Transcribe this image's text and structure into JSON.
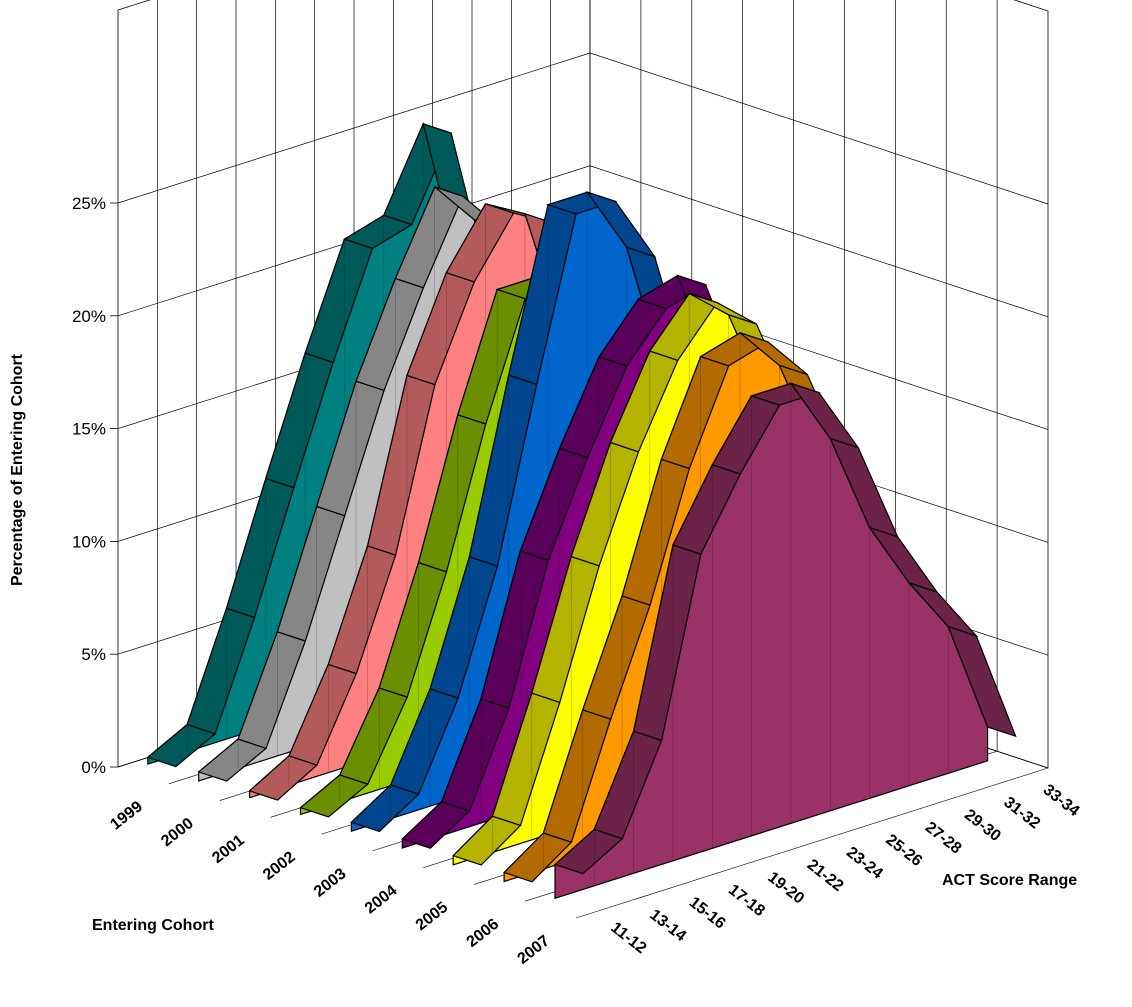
{
  "chart_data": {
    "type": "area",
    "xlabel": "Entering Cohort",
    "zlabel": "ACT Score Range",
    "ylabel": "Percentage of Entering Cohort",
    "yticks": [
      "0%",
      "5%",
      "10%",
      "15%",
      "20%",
      "25%"
    ],
    "ylim": [
      0,
      25
    ],
    "cohorts": [
      "1999",
      "2000",
      "2001",
      "2002",
      "2003",
      "2004",
      "2005",
      "2006",
      "2007"
    ],
    "score_ranges": [
      "11-12",
      "13-14",
      "15-16",
      "17-18",
      "19-20",
      "21-22",
      "23-24",
      "25-26",
      "27-28",
      "29-30",
      "31-32",
      "33-34"
    ],
    "series": [
      {
        "name": "1999",
        "color": "#008080",
        "values": [
          0.3,
          1.2,
          5.8,
          11.0,
          16.0,
          20.5,
          21.0,
          24.5,
          17.0,
          9.5,
          5.0,
          1.5
        ]
      },
      {
        "name": "2000",
        "color": "#C0C0C0",
        "values": [
          0.4,
          1.3,
          5.5,
          10.5,
          15.5,
          19.5,
          23.0,
          21.0,
          15.5,
          9.5,
          5.0,
          1.5
        ]
      },
      {
        "name": "2001",
        "color": "#FF8080",
        "values": [
          0.3,
          1.3,
          4.8,
          9.5,
          16.5,
          20.5,
          23.0,
          22.0,
          16.0,
          9.0,
          5.0,
          1.5
        ]
      },
      {
        "name": "2002",
        "color": "#99CC00",
        "values": [
          0.3,
          1.2,
          4.5,
          9.5,
          15.5,
          20.5,
          20.5,
          22.0,
          16.0,
          9.5,
          5.0,
          1.5
        ]
      },
      {
        "name": "2003",
        "color": "#0066CC",
        "values": [
          0.4,
          1.5,
          5.2,
          10.5,
          18.0,
          25.0,
          25.0,
          22.0,
          15.5,
          9.0,
          5.0,
          1.5
        ]
      },
      {
        "name": "2004",
        "color": "#800080",
        "values": [
          0.4,
          1.5,
          5.5,
          11.5,
          15.5,
          19.0,
          21.0,
          21.5,
          16.5,
          9.5,
          5.0,
          1.5
        ]
      },
      {
        "name": "2005",
        "color": "#FFFF00",
        "values": [
          0.4,
          1.6,
          6.5,
          12.0,
          16.5,
          20.0,
          22.0,
          20.5,
          16.0,
          9.5,
          5.0,
          1.5
        ]
      },
      {
        "name": "2006",
        "color": "#FF9900",
        "values": [
          0.4,
          1.6,
          6.5,
          11.0,
          16.5,
          20.5,
          21.0,
          19.0,
          14.5,
          9.5,
          5.0,
          1.5
        ]
      },
      {
        "name": "2007",
        "color": "#993366",
        "values": [
          1.5,
          2.5,
          6.3,
          14.0,
          17.0,
          19.5,
          19.5,
          16.5,
          12.0,
          9.0,
          6.5,
          1.5
        ]
      }
    ]
  }
}
